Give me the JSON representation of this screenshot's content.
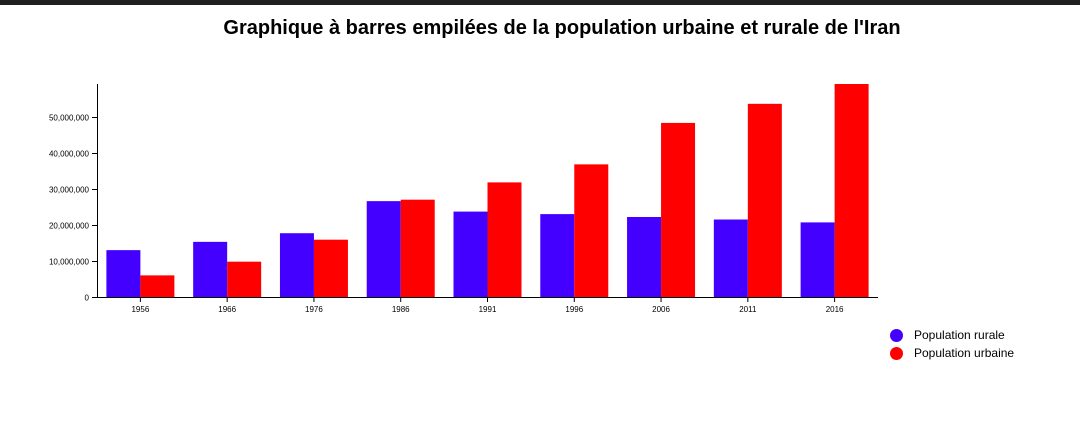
{
  "colors": {
    "rural": "#4400ff",
    "urban": "#ff0000"
  },
  "chart_data": {
    "type": "bar",
    "title": "Graphique à barres empilées de la population urbaine et rurale de l'Iran",
    "xlabel": "",
    "ylabel": "",
    "categories": [
      "1956",
      "1966",
      "1976",
      "1986",
      "1991",
      "1996",
      "2006",
      "2011",
      "2016"
    ],
    "series": [
      {
        "name": "Population rurale",
        "color": "#4400ff",
        "values": [
          13000000,
          15300000,
          17700000,
          26600000,
          23700000,
          23000000,
          22200000,
          21500000,
          20700000
        ]
      },
      {
        "name": "Population urbaine",
        "color": "#ff0000",
        "values": [
          6000000,
          9800000,
          15900000,
          27000000,
          31800000,
          36800000,
          48300000,
          53600000,
          59100000
        ]
      }
    ],
    "ylim": [
      0,
      59100000
    ],
    "yticks": [
      "0",
      "10,000,000",
      "20,000,000",
      "30,000,000",
      "40,000,000",
      "50,000,000"
    ],
    "grid": false,
    "legend_position": "bottom-right"
  }
}
